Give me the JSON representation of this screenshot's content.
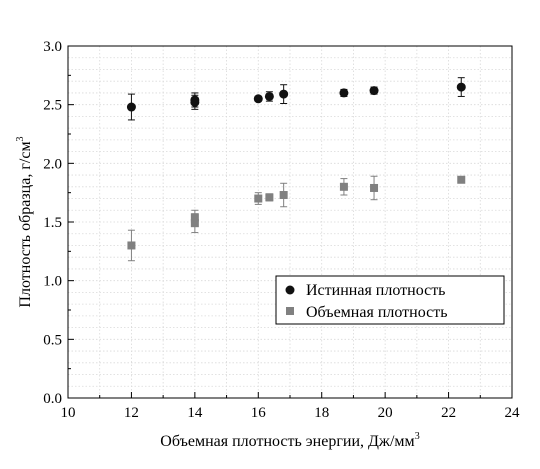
{
  "chart_data": {
    "type": "scatter",
    "xlabel": "Объемная плотность энергии, Дж/мм",
    "xlabel_sup": "3",
    "ylabel": "Плотность образца, г/см",
    "ylabel_sup": "3",
    "xlim": [
      10,
      24
    ],
    "ylim": [
      0.0,
      3.0
    ],
    "x_ticks": [
      "10",
      "12",
      "14",
      "16",
      "18",
      "20",
      "22",
      "24"
    ],
    "y_ticks": [
      "0.0",
      "0.5",
      "1.0",
      "1.5",
      "2.0",
      "2.5",
      "3.0"
    ],
    "grid": true,
    "legend_position": "bottom-right",
    "series": [
      {
        "name": "Истинная плотность",
        "marker": "circle",
        "color": "#111111",
        "points": [
          {
            "x": 12.0,
            "y": 2.48,
            "err": 0.11
          },
          {
            "x": 14.0,
            "y": 2.52,
            "err": 0.06
          },
          {
            "x": 14.0,
            "y": 2.54,
            "err": 0.06
          },
          {
            "x": 16.0,
            "y": 2.55,
            "err": 0.02
          },
          {
            "x": 16.35,
            "y": 2.57,
            "err": 0.04
          },
          {
            "x": 16.8,
            "y": 2.59,
            "err": 0.08
          },
          {
            "x": 18.7,
            "y": 2.6,
            "err": 0.03
          },
          {
            "x": 19.65,
            "y": 2.62,
            "err": 0.03
          },
          {
            "x": 22.4,
            "y": 2.65,
            "err": 0.08
          }
        ]
      },
      {
        "name": "Объемная плотность",
        "marker": "square",
        "color": "#808080",
        "points": [
          {
            "x": 12.0,
            "y": 1.3,
            "err": 0.13
          },
          {
            "x": 14.0,
            "y": 1.49,
            "err": 0.08
          },
          {
            "x": 14.0,
            "y": 1.54,
            "err": 0.06
          },
          {
            "x": 16.0,
            "y": 1.7,
            "err": 0.05
          },
          {
            "x": 16.35,
            "y": 1.71,
            "err": 0.03
          },
          {
            "x": 16.8,
            "y": 1.73,
            "err": 0.1
          },
          {
            "x": 18.7,
            "y": 1.8,
            "err": 0.07
          },
          {
            "x": 19.65,
            "y": 1.79,
            "err": 0.1
          },
          {
            "x": 22.4,
            "y": 1.86,
            "err": 0.02
          }
        ]
      }
    ]
  }
}
